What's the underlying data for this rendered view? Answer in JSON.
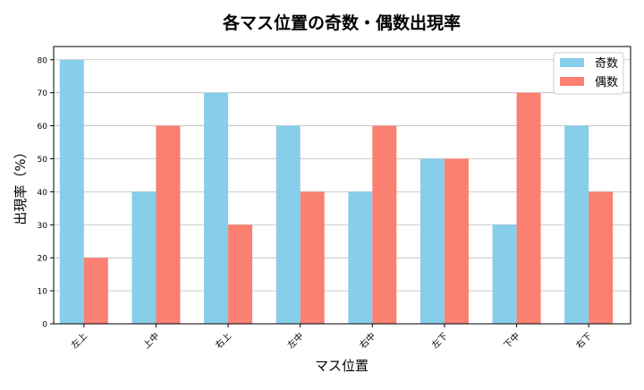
{
  "chart_data": {
    "type": "bar",
    "title": "各マス位置の奇数・偶数出現率",
    "xlabel": "マス位置",
    "ylabel": "出現率（%）",
    "categories": [
      "左上",
      "上中",
      "右上",
      "左中",
      "右中",
      "左下",
      "下中",
      "右下"
    ],
    "series": [
      {
        "name": "奇数",
        "values": [
          80,
          40,
          70,
          60,
          40,
          50,
          30,
          60
        ],
        "color": "#87CEEB"
      },
      {
        "name": "偶数",
        "values": [
          20,
          60,
          30,
          40,
          60,
          50,
          70,
          40
        ],
        "color": "#FA8072"
      }
    ],
    "ylim": [
      0,
      84
    ],
    "yticks": [
      0,
      10,
      20,
      30,
      40,
      50,
      60,
      70,
      80
    ],
    "grid": "y",
    "legend": "top-right"
  }
}
